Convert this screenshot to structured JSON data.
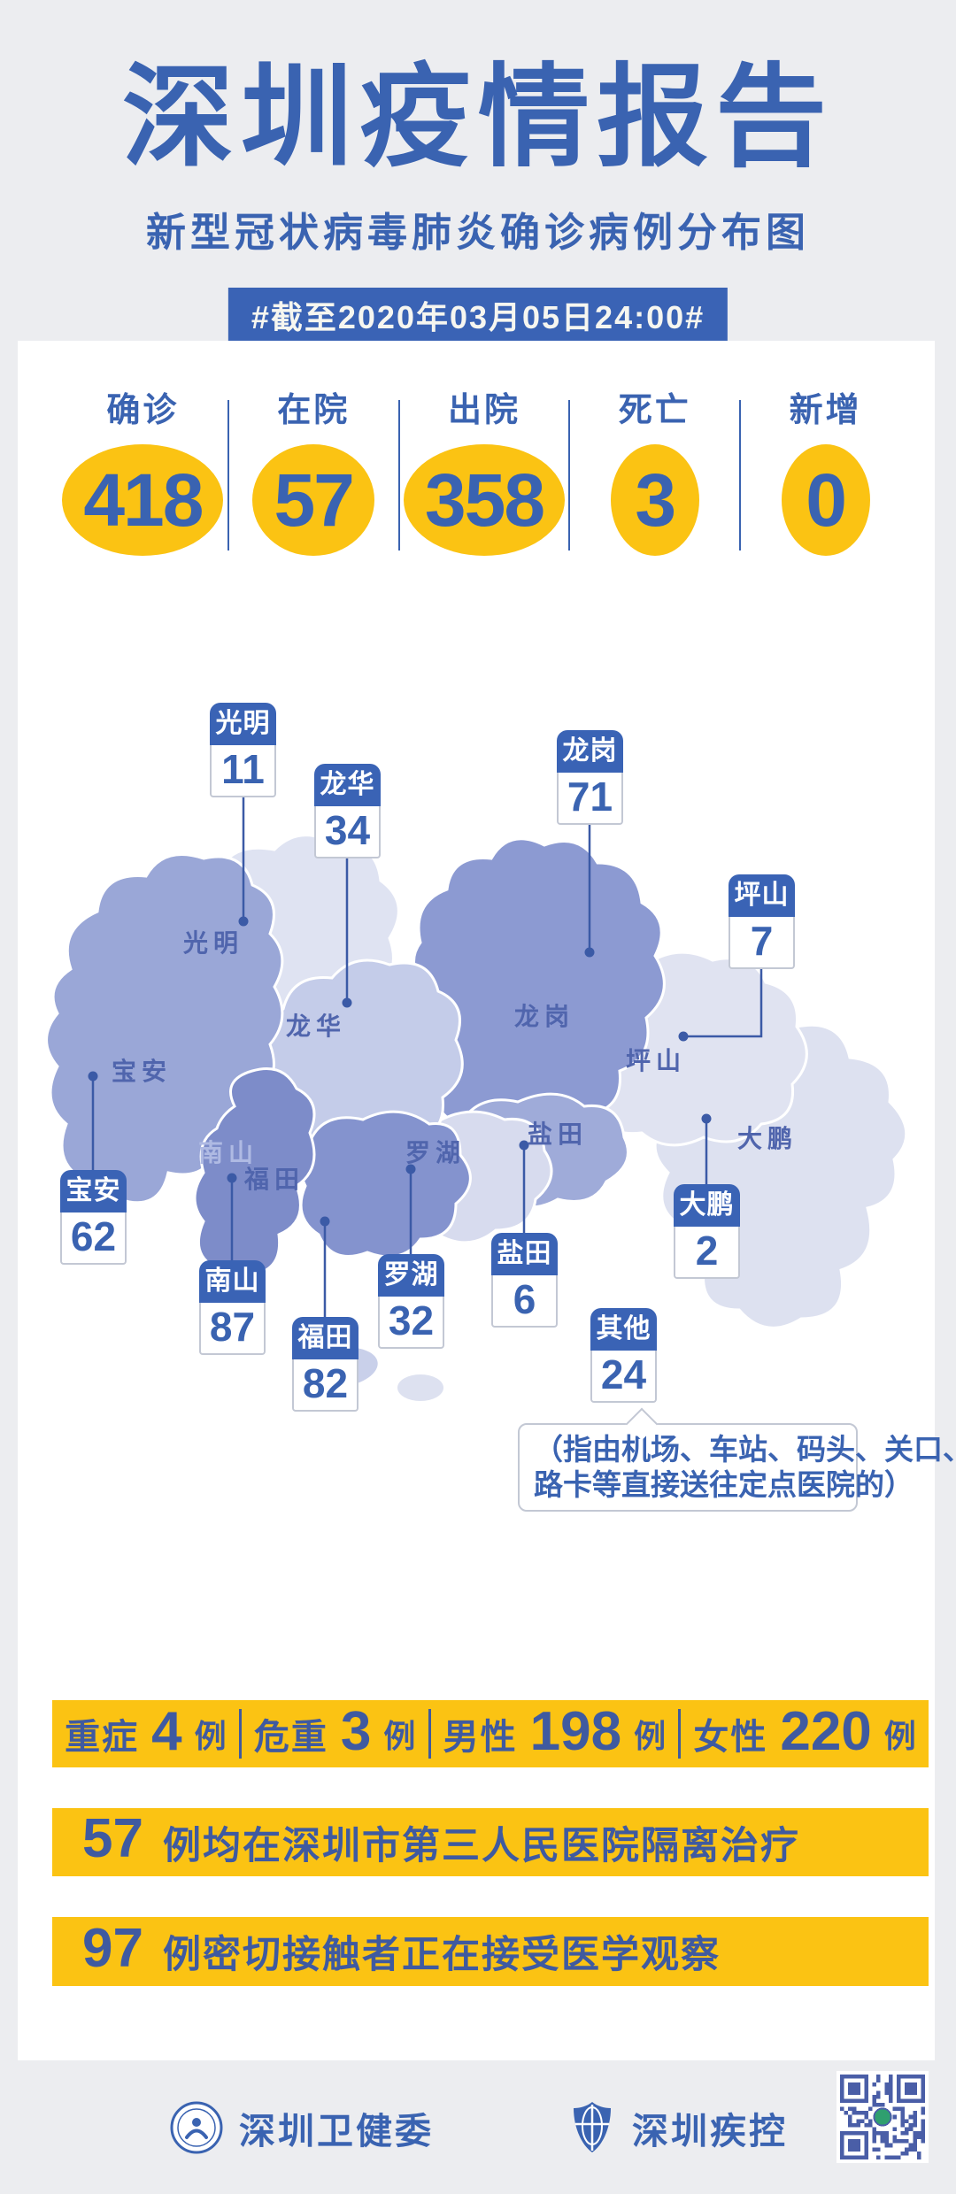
{
  "page": {
    "title": "深圳疫情报告",
    "subtitle": "新型冠状病毒肺炎确诊病例分布图",
    "date_badge": "#截至2020年03月05日24:00#"
  },
  "colors": {
    "primary_blue": "#3A63B1",
    "badge_blue": "#3A63B5",
    "accent_yellow": "#FBC313",
    "bar_text_blue": "#3F5AA0",
    "connector_blue": "#3B5AA6",
    "page_bg": "#ECEDF0"
  },
  "summary_stats": [
    {
      "label": "确诊",
      "value": "418"
    },
    {
      "label": "在院",
      "value": "57"
    },
    {
      "label": "出院",
      "value": "358"
    },
    {
      "label": "死亡",
      "value": "3"
    },
    {
      "label": "新增",
      "value": "0"
    }
  ],
  "map": {
    "districts": [
      {
        "name": "光明",
        "cases": "11",
        "color": "#DFE3F2"
      },
      {
        "name": "龙华",
        "cases": "34",
        "color": "#C4CCE9"
      },
      {
        "name": "龙岗",
        "cases": "71",
        "color": "#8C9AD2"
      },
      {
        "name": "坪山",
        "cases": "7",
        "color": "#E0E3F1"
      },
      {
        "name": "宝安",
        "cases": "62",
        "color": "#9AA7D7"
      },
      {
        "name": "南山",
        "cases": "87",
        "color": "#7D8CC9"
      },
      {
        "name": "福田",
        "cases": "82",
        "color": "#8493CE"
      },
      {
        "name": "罗湖",
        "cases": "32",
        "color": "#D7DBEE"
      },
      {
        "name": "盐田",
        "cases": "6",
        "color": "#9FABD9"
      },
      {
        "name": "大鹏",
        "cases": "2",
        "color": "#DDE1F0"
      },
      {
        "name": "其他",
        "cases": "24"
      }
    ],
    "note": {
      "line1": "（指由机场、车站、码头、关口、",
      "line2": "路卡等直接送往定点医院的）"
    }
  },
  "detail_bar": [
    {
      "label": "重症",
      "value": "4",
      "unit": "例"
    },
    {
      "label": "危重",
      "value": "3",
      "unit": "例"
    },
    {
      "label": "男性",
      "value": "198",
      "unit": "例"
    },
    {
      "label": "女性",
      "value": "220",
      "unit": "例"
    }
  ],
  "notice_bars": [
    {
      "value": "57",
      "text": "例均在深圳市第三人民医院隔离治疗"
    },
    {
      "value": "97",
      "text": "例密切接触者正在接受医学观察"
    }
  ],
  "footer": {
    "org1": "深圳卫健委",
    "org2": "深圳疾控"
  },
  "chart_data": {
    "type": "table",
    "title": "深圳疫情报告",
    "subtitle": "新型冠状病毒肺炎确诊病例分布图",
    "as_of": "#截至2020年03月05日24:00#",
    "summary": {
      "确诊": 418,
      "在院": 57,
      "出院": 358,
      "死亡": 3,
      "新增": 0
    },
    "categories": [
      "光明",
      "龙华",
      "龙岗",
      "坪山",
      "宝安",
      "南山",
      "福田",
      "罗湖",
      "盐田",
      "大鹏",
      "其他"
    ],
    "values": [
      11,
      34,
      71,
      7,
      62,
      87,
      82,
      32,
      6,
      2,
      24
    ],
    "detail": {
      "重症": 4,
      "危重": 3,
      "男性": 198,
      "女性": 220
    },
    "notes": [
      "57例均在深圳市第三人民医院隔离治疗",
      "97例密切接触者正在接受医学观察"
    ]
  }
}
